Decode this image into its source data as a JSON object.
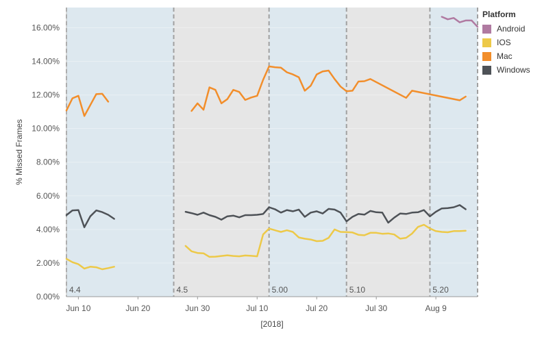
{
  "chart_data": {
    "type": "line",
    "xlabel": "[2018]",
    "ylabel": "% Missed Frames",
    "ylim": [
      0,
      0.172
    ],
    "xlim": [
      "2018-06-08",
      "2018-08-16"
    ],
    "y_ticks": [
      "0.00%",
      "2.00%",
      "4.00%",
      "6.00%",
      "8.00%",
      "10.00%",
      "12.00%",
      "14.00%",
      "16.00%"
    ],
    "y_tick_values": [
      0,
      0.02,
      0.04,
      0.06,
      0.08,
      0.1,
      0.12,
      0.14,
      0.16
    ],
    "x_ticks": [
      {
        "label": "Jun 10",
        "date": "2018-06-10"
      },
      {
        "label": "Jun 20",
        "date": "2018-06-20"
      },
      {
        "label": "Jun 30",
        "date": "2018-06-30"
      },
      {
        "label": "Jul 10",
        "date": "2018-07-10"
      },
      {
        "label": "Jul 20",
        "date": "2018-07-20"
      },
      {
        "label": "Jul 30",
        "date": "2018-07-30"
      },
      {
        "label": "Aug 9",
        "date": "2018-08-09"
      }
    ],
    "releases": [
      {
        "label": "4.4",
        "start": "2018-06-08",
        "end": "2018-06-26",
        "color": "#dde8ef"
      },
      {
        "label": "4.5",
        "start": "2018-06-26",
        "end": "2018-07-12",
        "color": "#e6e6e6"
      },
      {
        "label": "5.00",
        "start": "2018-07-12",
        "end": "2018-07-25",
        "color": "#dde8ef"
      },
      {
        "label": "5.10",
        "start": "2018-07-25",
        "end": "2018-08-08",
        "color": "#e6e6e6"
      },
      {
        "label": "5.20",
        "start": "2018-08-08",
        "end": "2018-08-16",
        "color": "#dde8ef"
      }
    ],
    "legend_title": "Platform",
    "legend_position": "top-right",
    "series": [
      {
        "name": "Android",
        "color": "#b07aa1",
        "segments": [
          [
            [
              "2018-08-10",
              0.1665
            ],
            [
              "2018-08-11",
              0.165
            ],
            [
              "2018-08-12",
              0.1658
            ],
            [
              "2018-08-13",
              0.1632
            ],
            [
              "2018-08-14",
              0.1643
            ],
            [
              "2018-08-15",
              0.1643
            ],
            [
              "2018-08-16",
              0.1605
            ]
          ]
        ]
      },
      {
        "name": "IOS",
        "color": "#edc948",
        "segments": [
          [
            [
              "2018-06-08",
              0.0225
            ],
            [
              "2018-06-09",
              0.0205
            ],
            [
              "2018-06-10",
              0.0193
            ],
            [
              "2018-06-11",
              0.0167
            ],
            [
              "2018-06-12",
              0.0178
            ],
            [
              "2018-06-13",
              0.0175
            ],
            [
              "2018-06-14",
              0.0163
            ],
            [
              "2018-06-15",
              0.017
            ],
            [
              "2018-06-16",
              0.0178
            ]
          ],
          [
            [
              "2018-06-28",
              0.0302
            ],
            [
              "2018-06-29",
              0.027
            ],
            [
              "2018-06-30",
              0.026
            ],
            [
              "2018-07-01",
              0.0258
            ],
            [
              "2018-07-02",
              0.0237
            ],
            [
              "2018-07-03",
              0.0238
            ],
            [
              "2018-07-04",
              0.0242
            ],
            [
              "2018-07-05",
              0.0246
            ],
            [
              "2018-07-06",
              0.0242
            ],
            [
              "2018-07-07",
              0.024
            ],
            [
              "2018-07-08",
              0.0245
            ],
            [
              "2018-07-09",
              0.0243
            ],
            [
              "2018-07-10",
              0.024
            ],
            [
              "2018-07-11",
              0.037
            ],
            [
              "2018-07-12",
              0.0405
            ],
            [
              "2018-07-13",
              0.0395
            ],
            [
              "2018-07-14",
              0.0385
            ],
            [
              "2018-07-15",
              0.0395
            ],
            [
              "2018-07-16",
              0.0385
            ],
            [
              "2018-07-17",
              0.0352
            ],
            [
              "2018-07-18",
              0.0345
            ],
            [
              "2018-07-19",
              0.034
            ],
            [
              "2018-07-20",
              0.033
            ],
            [
              "2018-07-21",
              0.0332
            ],
            [
              "2018-07-22",
              0.035
            ],
            [
              "2018-07-23",
              0.04
            ],
            [
              "2018-07-24",
              0.0385
            ],
            [
              "2018-07-25",
              0.0384
            ],
            [
              "2018-07-26",
              0.0382
            ],
            [
              "2018-07-27",
              0.0368
            ],
            [
              "2018-07-28",
              0.0365
            ],
            [
              "2018-07-29",
              0.038
            ],
            [
              "2018-07-30",
              0.038
            ],
            [
              "2018-07-31",
              0.0374
            ],
            [
              "2018-08-01",
              0.0376
            ],
            [
              "2018-08-02",
              0.037
            ],
            [
              "2018-08-03",
              0.0345
            ],
            [
              "2018-08-04",
              0.035
            ],
            [
              "2018-08-05",
              0.0375
            ],
            [
              "2018-08-06",
              0.0415
            ],
            [
              "2018-08-07",
              0.0428
            ],
            [
              "2018-08-08",
              0.0406
            ],
            [
              "2018-08-09",
              0.039
            ],
            [
              "2018-08-10",
              0.0385
            ],
            [
              "2018-08-11",
              0.0383
            ],
            [
              "2018-08-12",
              0.039
            ],
            [
              "2018-08-13",
              0.039
            ],
            [
              "2018-08-14",
              0.0392
            ]
          ]
        ]
      },
      {
        "name": "Mac",
        "color": "#f28e2b",
        "segments": [
          [
            [
              "2018-06-08",
              0.1108
            ],
            [
              "2018-06-09",
              0.118
            ],
            [
              "2018-06-10",
              0.1195
            ],
            [
              "2018-06-11",
              0.1075
            ],
            [
              "2018-06-12",
              0.114
            ],
            [
              "2018-06-13",
              0.1205
            ],
            [
              "2018-06-14",
              0.1207
            ],
            [
              "2018-06-15",
              0.116
            ]
          ],
          [
            [
              "2018-06-29",
              0.1105
            ],
            [
              "2018-06-30",
              0.115
            ],
            [
              "2018-07-01",
              0.1112
            ],
            [
              "2018-07-02",
              0.1245
            ],
            [
              "2018-07-03",
              0.123
            ],
            [
              "2018-07-04",
              0.115
            ],
            [
              "2018-07-05",
              0.1175
            ],
            [
              "2018-07-06",
              0.123
            ],
            [
              "2018-07-07",
              0.1218
            ],
            [
              "2018-07-08",
              0.117
            ],
            [
              "2018-07-09",
              0.1185
            ],
            [
              "2018-07-10",
              0.1195
            ],
            [
              "2018-07-11",
              0.129
            ],
            [
              "2018-07-12",
              0.137
            ],
            [
              "2018-07-13",
              0.1365
            ],
            [
              "2018-07-14",
              0.1362
            ],
            [
              "2018-07-15",
              0.1335
            ],
            [
              "2018-07-16",
              0.1322
            ],
            [
              "2018-07-17",
              0.1305
            ],
            [
              "2018-07-18",
              0.1225
            ],
            [
              "2018-07-19",
              0.1255
            ],
            [
              "2018-07-20",
              0.1322
            ],
            [
              "2018-07-21",
              0.134
            ],
            [
              "2018-07-22",
              0.1345
            ],
            [
              "2018-07-23",
              0.1295
            ],
            [
              "2018-07-24",
              0.125
            ],
            [
              "2018-07-25",
              0.1222
            ],
            [
              "2018-07-26",
              0.1225
            ],
            [
              "2018-07-27",
              0.128
            ],
            [
              "2018-07-28",
              0.1282
            ],
            [
              "2018-07-29",
              0.1295
            ],
            [
              "2018-08-04",
              0.1183
            ],
            [
              "2018-08-05",
              0.1225
            ],
            [
              "2018-08-13",
              0.1168
            ],
            [
              "2018-08-14",
              0.119
            ]
          ]
        ]
      },
      {
        "name": "Windows",
        "color": "#4e5257",
        "segments": [
          [
            [
              "2018-06-08",
              0.0485
            ],
            [
              "2018-06-09",
              0.0513
            ],
            [
              "2018-06-10",
              0.0515
            ],
            [
              "2018-06-11",
              0.0413
            ],
            [
              "2018-06-12",
              0.0478
            ],
            [
              "2018-06-13",
              0.0513
            ],
            [
              "2018-06-14",
              0.0503
            ],
            [
              "2018-06-15",
              0.0487
            ],
            [
              "2018-06-16",
              0.0463
            ]
          ],
          [
            [
              "2018-06-28",
              0.0505
            ],
            [
              "2018-06-29",
              0.0497
            ],
            [
              "2018-06-30",
              0.0487
            ],
            [
              "2018-07-01",
              0.05
            ],
            [
              "2018-07-02",
              0.0485
            ],
            [
              "2018-07-03",
              0.0475
            ],
            [
              "2018-07-04",
              0.0458
            ],
            [
              "2018-07-05",
              0.0478
            ],
            [
              "2018-07-06",
              0.0482
            ],
            [
              "2018-07-07",
              0.0472
            ],
            [
              "2018-07-08",
              0.0485
            ],
            [
              "2018-07-09",
              0.0485
            ],
            [
              "2018-07-10",
              0.0487
            ],
            [
              "2018-07-11",
              0.0492
            ],
            [
              "2018-07-12",
              0.0532
            ],
            [
              "2018-07-13",
              0.052
            ],
            [
              "2018-07-14",
              0.05
            ],
            [
              "2018-07-15",
              0.0515
            ],
            [
              "2018-07-16",
              0.0508
            ],
            [
              "2018-07-17",
              0.0518
            ],
            [
              "2018-07-18",
              0.0475
            ],
            [
              "2018-07-19",
              0.05
            ],
            [
              "2018-07-20",
              0.0508
            ],
            [
              "2018-07-21",
              0.0495
            ],
            [
              "2018-07-22",
              0.0522
            ],
            [
              "2018-07-23",
              0.0518
            ],
            [
              "2018-07-24",
              0.05
            ],
            [
              "2018-07-25",
              0.0448
            ],
            [
              "2018-07-26",
              0.0475
            ],
            [
              "2018-07-27",
              0.0492
            ],
            [
              "2018-07-28",
              0.0488
            ],
            [
              "2018-07-29",
              0.051
            ],
            [
              "2018-07-30",
              0.0502
            ],
            [
              "2018-07-31",
              0.05
            ],
            [
              "2018-08-01",
              0.044
            ],
            [
              "2018-08-02",
              0.047
            ],
            [
              "2018-08-03",
              0.0495
            ],
            [
              "2018-08-04",
              0.0492
            ],
            [
              "2018-08-05",
              0.05
            ],
            [
              "2018-08-06",
              0.0502
            ],
            [
              "2018-08-07",
              0.0515
            ],
            [
              "2018-08-08",
              0.0478
            ],
            [
              "2018-08-09",
              0.0505
            ],
            [
              "2018-08-10",
              0.0525
            ],
            [
              "2018-08-11",
              0.0527
            ],
            [
              "2018-08-12",
              0.0532
            ],
            [
              "2018-08-13",
              0.0545
            ],
            [
              "2018-08-14",
              0.052
            ]
          ]
        ]
      }
    ]
  }
}
